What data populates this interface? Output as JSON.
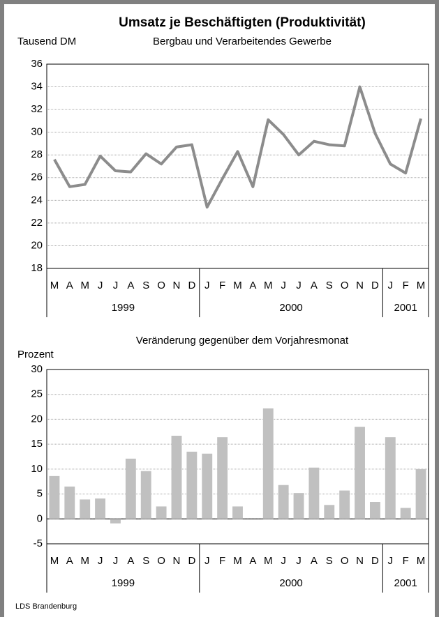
{
  "chart_data": [
    {
      "type": "line",
      "title": "Umsatz je Beschäftigten (Produktivität)",
      "subtitle": "Bergbau und Verarbeitendes Gewerbe",
      "y_label": "Tausend DM",
      "year_groups": [
        {
          "label": "1999",
          "months": [
            "M",
            "A",
            "M",
            "J",
            "J",
            "A",
            "S",
            "O",
            "N",
            "D"
          ]
        },
        {
          "label": "2000",
          "months": [
            "J",
            "F",
            "M",
            "A",
            "M",
            "J",
            "J",
            "A",
            "S",
            "O",
            "N",
            "D"
          ]
        },
        {
          "label": "2001",
          "months": [
            "J",
            "F",
            "M"
          ]
        }
      ],
      "values": [
        27.6,
        25.2,
        25.4,
        27.9,
        26.6,
        26.5,
        28.1,
        27.2,
        28.7,
        28.9,
        23.4,
        25.9,
        28.3,
        25.2,
        31.1,
        29.8,
        28.0,
        29.2,
        28.9,
        28.8,
        34.0,
        29.9,
        27.2,
        26.4,
        31.2
      ],
      "color": "#8c8c8c",
      "ylim": [
        18,
        36
      ],
      "yticks": [
        18,
        20,
        22,
        24,
        26,
        28,
        30,
        32,
        34,
        36
      ],
      "grid": true
    },
    {
      "type": "bar",
      "subtitle": "Veränderung gegenüber dem Vorjahresmonat",
      "y_label": "Prozent",
      "year_groups": [
        {
          "label": "1999",
          "months": [
            "M",
            "A",
            "M",
            "J",
            "J",
            "A",
            "S",
            "O",
            "N",
            "D"
          ]
        },
        {
          "label": "2000",
          "months": [
            "J",
            "F",
            "M",
            "A",
            "M",
            "J",
            "J",
            "A",
            "S",
            "O",
            "N",
            "D"
          ]
        },
        {
          "label": "2001",
          "months": [
            "J",
            "F",
            "M"
          ]
        }
      ],
      "values": [
        8.6,
        6.5,
        3.9,
        4.1,
        -0.9,
        12.1,
        9.6,
        2.5,
        16.7,
        13.5,
        13.1,
        16.4,
        2.5,
        null,
        22.2,
        6.8,
        5.2,
        10.3,
        2.8,
        5.7,
        18.5,
        3.4,
        16.4,
        2.2,
        10.0
      ],
      "color": "#c0c0c0",
      "ylim": [
        -5,
        30
      ],
      "yticks": [
        -5,
        0,
        5,
        10,
        15,
        20,
        25,
        30
      ],
      "grid": true
    }
  ],
  "footer": "LDS Brandenburg"
}
